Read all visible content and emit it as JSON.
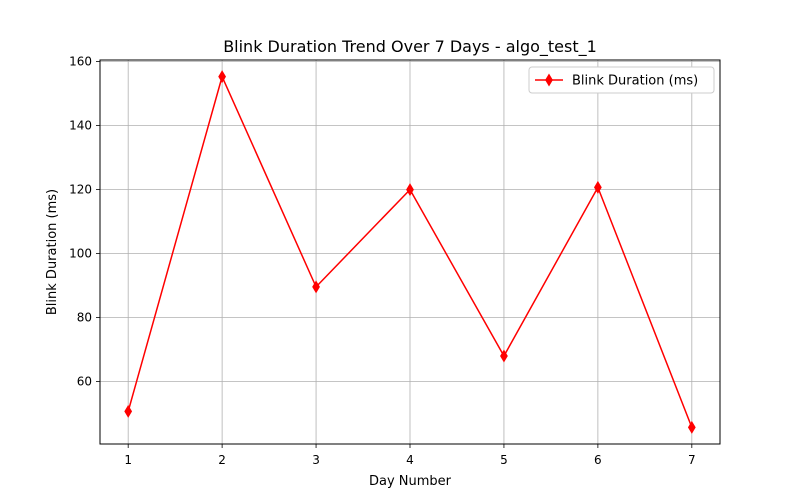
{
  "chart_data": {
    "type": "line",
    "title": "Blink Duration Trend Over 7 Days - algo_test_1",
    "xlabel": "Day Number",
    "ylabel": "Blink Duration (ms)",
    "x": [
      1,
      2,
      3,
      4,
      5,
      6,
      7
    ],
    "xticks": [
      "1",
      "2",
      "3",
      "4",
      "5",
      "6",
      "7"
    ],
    "xlim": [
      0.7,
      7.3
    ],
    "yticks": [
      "60",
      "80",
      "100",
      "120",
      "140",
      "160"
    ],
    "ylim": [
      40.5,
      160.5
    ],
    "grid": true,
    "legend_position": "top-right",
    "series": [
      {
        "name": "Blink Duration (ms)",
        "values": [
          50.7,
          155.3,
          89.6,
          120.0,
          68.0,
          120.7,
          45.7
        ],
        "color": "#ff0000",
        "marker": "thin-diamond"
      }
    ]
  }
}
